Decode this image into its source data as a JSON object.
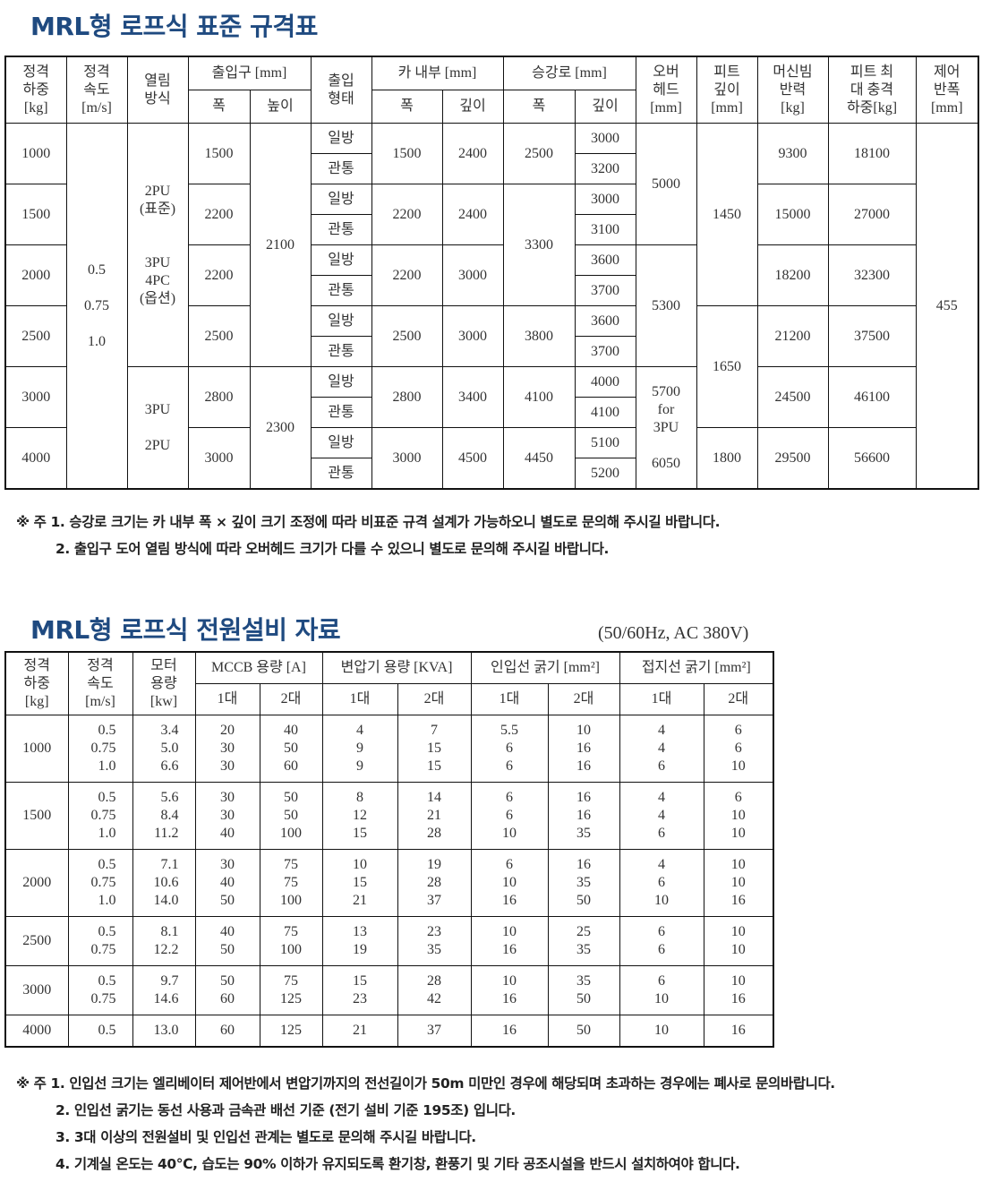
{
  "spec": {
    "title": "MRL형 로프식 표준 규격표",
    "h": {
      "load": "정격\n하중\n[kg]",
      "speed": "정격\n속도\n[m/s]",
      "method": "열림\n방식",
      "entrance": "출입구 [mm]",
      "width": "폭",
      "height": "높이",
      "entry_type": "출입\n형태",
      "car": "카 내부 [mm]",
      "depth": "깊이",
      "shaft": "승강로 [mm]",
      "overhead": "오버\n헤드\n[mm]",
      "pit": "피트\n깊이\n[mm]",
      "beam": "머신빔\n반력\n[kg]",
      "impact": "피트 최\n대 충격\n하중[kg]",
      "panel": "제어\n반폭\n[mm]"
    },
    "loads": [
      "1000",
      "1500",
      "2000",
      "2500",
      "3000",
      "4000"
    ],
    "speed": "0.5\n\n0.75\n\n1.0",
    "method": [
      "2PU\n(표준)\n\n\n3PU\n4PC\n(옵션)",
      "3PU\n\n2PU"
    ],
    "door_w": [
      "1500",
      "2200",
      "2200",
      "2500",
      "2800",
      "3000"
    ],
    "door_h": [
      "2100",
      "2300"
    ],
    "types": [
      "일방",
      "관통"
    ],
    "car_w": [
      "1500",
      "2200",
      "2200",
      "2500",
      "2800",
      "3000"
    ],
    "car_d": [
      "2400",
      "2400",
      "3000",
      "3000",
      "3400",
      "4500"
    ],
    "shaft_w": [
      "2500",
      "3300",
      "3800",
      "4100",
      "4450"
    ],
    "shaft_d": [
      "3000",
      "3200",
      "3000",
      "3100",
      "3600",
      "3700",
      "3600",
      "3700",
      "4000",
      "4100",
      "5100",
      "5200"
    ],
    "overhead": [
      "5000",
      "5300",
      "5700\nfor\n3PU\n\n6050"
    ],
    "pit": [
      "1450",
      "1650",
      "1800"
    ],
    "beam": [
      "9300",
      "15000",
      "18200",
      "21200",
      "24500",
      "29500"
    ],
    "impact": [
      "18100",
      "27000",
      "32300",
      "37500",
      "46100",
      "56600"
    ],
    "panel": "455",
    "notes": [
      "※ 주 1. 승강로 크기는 카 내부 폭 × 깊이 크기 조정에 따라 비표준 규격 설계가 가능하오니 별도로 문의해 주시길 바랍니다.",
      "2. 출입구 도어 열림 방식에 따라 오버헤드 크기가 다를 수 있으니 별도로 문의해 주시길 바랍니다."
    ]
  },
  "power": {
    "title": "MRL형 로프식 전원설비 자료",
    "subtitle": "(50/60Hz, AC 380V)",
    "h": {
      "load": "정격\n하중\n[kg]",
      "speed": "정격\n속도\n[m/s]",
      "motor": "모터\n용량\n[kw]",
      "mccb": "MCCB 용량 [A]",
      "trans": "변압기 용량 [KVA]",
      "inlet": "인입선 굵기 [mm²]",
      "ground": "접지선 굵기 [mm²]",
      "one": "1대",
      "two": "2대"
    },
    "rows": [
      {
        "load": "1000",
        "cells": [
          "0.5\n0.75\n1.0",
          "3.4\n5.0\n6.6",
          "20\n30\n30",
          "40\n50\n60",
          "4\n9\n9",
          "7\n15\n15",
          "5.5\n6\n6",
          "10\n16\n16",
          "4\n4\n6",
          "6\n6\n10"
        ]
      },
      {
        "load": "1500",
        "cells": [
          "0.5\n0.75\n1.0",
          "5.6\n8.4\n11.2",
          "30\n30\n40",
          "50\n50\n100",
          "8\n12\n15",
          "14\n21\n28",
          "6\n6\n10",
          "16\n16\n35",
          "4\n4\n6",
          "6\n10\n10"
        ]
      },
      {
        "load": "2000",
        "cells": [
          "0.5\n0.75\n1.0",
          "7.1\n10.6\n14.0",
          "30\n40\n50",
          "75\n75\n100",
          "10\n15\n21",
          "19\n28\n37",
          "6\n10\n16",
          "16\n35\n50",
          "4\n6\n10",
          "10\n10\n16"
        ]
      },
      {
        "load": "2500",
        "cells": [
          "0.5\n0.75",
          "8.1\n12.2",
          "40\n50",
          "75\n100",
          "13\n19",
          "23\n35",
          "10\n16",
          "25\n35",
          "6\n6",
          "10\n10"
        ]
      },
      {
        "load": "3000",
        "cells": [
          "0.5\n0.75",
          "9.7\n14.6",
          "50\n60",
          "75\n125",
          "15\n23",
          "28\n42",
          "10\n16",
          "35\n50",
          "6\n10",
          "10\n16"
        ]
      },
      {
        "load": "4000",
        "cells": [
          "0.5",
          "13.0",
          "60",
          "125",
          "21",
          "37",
          "16",
          "50",
          "10",
          "16"
        ]
      }
    ],
    "notes": [
      "※ 주 1. 인입선 크기는 엘리베이터 제어반에서 변압기까지의 전선길이가 50m 미만인 경우에 해당되며 초과하는 경우에는 폐사로 문의바랍니다.",
      "2. 인입선 굵기는 동선 사용과 금속관 배선 기준 (전기 설비 기준 195조) 입니다.",
      "3. 3대 이상의 전원설비 및 인입선 관계는 별도로 문의해 주시길 바랍니다.",
      "4. 기계실 온도는 40℃, 습도는 90% 이하가 유지되도록 환기창, 환풍기 및 기타 공조시설을 반드시 설치하여야 합니다."
    ]
  }
}
